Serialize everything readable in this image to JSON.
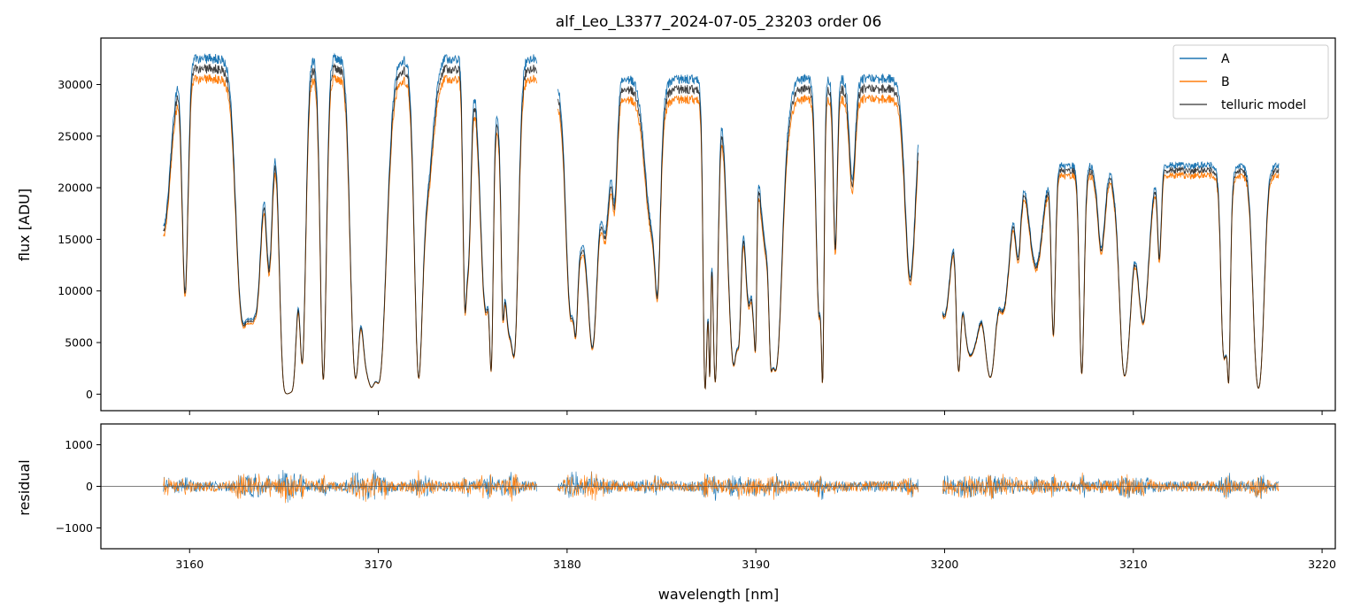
{
  "chart_data": [
    {
      "type": "line",
      "title": "alf_Leo_L3377_2024-07-05_23203  order 06",
      "xlabel": "",
      "ylabel": "flux [ADU]",
      "xlim": [
        3155.3,
        3220.7
      ],
      "ylim": [
        -1600,
        34500
      ],
      "x_ticks": [
        3160,
        3170,
        3180,
        3190,
        3200,
        3210,
        3220
      ],
      "y_ticks": [
        0,
        5000,
        10000,
        15000,
        20000,
        25000,
        30000
      ],
      "y_tick_labels": [
        "0",
        "5000",
        "10000",
        "15000",
        "20000",
        "25000",
        "30000"
      ],
      "legend_position": "top-right",
      "grid": false,
      "segments": [
        {
          "x_start": 3158.6,
          "x_end": 3178.4,
          "continuum_A": 33000,
          "continuum_B": 31000
        },
        {
          "x_start": 3179.5,
          "x_end": 3198.6,
          "continuum_A": 31000,
          "continuum_B": 29000
        },
        {
          "x_start": 3199.9,
          "x_end": 3217.7,
          "continuum_A": 22500,
          "continuum_B": 21500
        }
      ],
      "series": [
        {
          "name": "A",
          "color": "#1f77b4"
        },
        {
          "name": "B",
          "color": "#ff7f0e"
        },
        {
          "name": "telluric model",
          "color": "#000000"
        }
      ]
    },
    {
      "type": "line",
      "title": "",
      "xlabel": "wavelength [nm]",
      "ylabel": "residual",
      "xlim": [
        3155.3,
        3220.7
      ],
      "ylim": [
        -1500,
        1500
      ],
      "x_ticks": [
        3160,
        3170,
        3180,
        3190,
        3200,
        3210,
        3220
      ],
      "x_tick_labels": [
        "3160",
        "3170",
        "3180",
        "3190",
        "3200",
        "3210",
        "3220"
      ],
      "y_ticks": [
        -1000,
        0,
        1000
      ],
      "y_tick_labels": [
        "−1000",
        "0",
        "1000"
      ],
      "zero_line": true,
      "grid": false,
      "series": [
        {
          "name": "A",
          "color": "#1f77b4"
        },
        {
          "name": "B",
          "color": "#ff7f0e"
        }
      ]
    }
  ]
}
